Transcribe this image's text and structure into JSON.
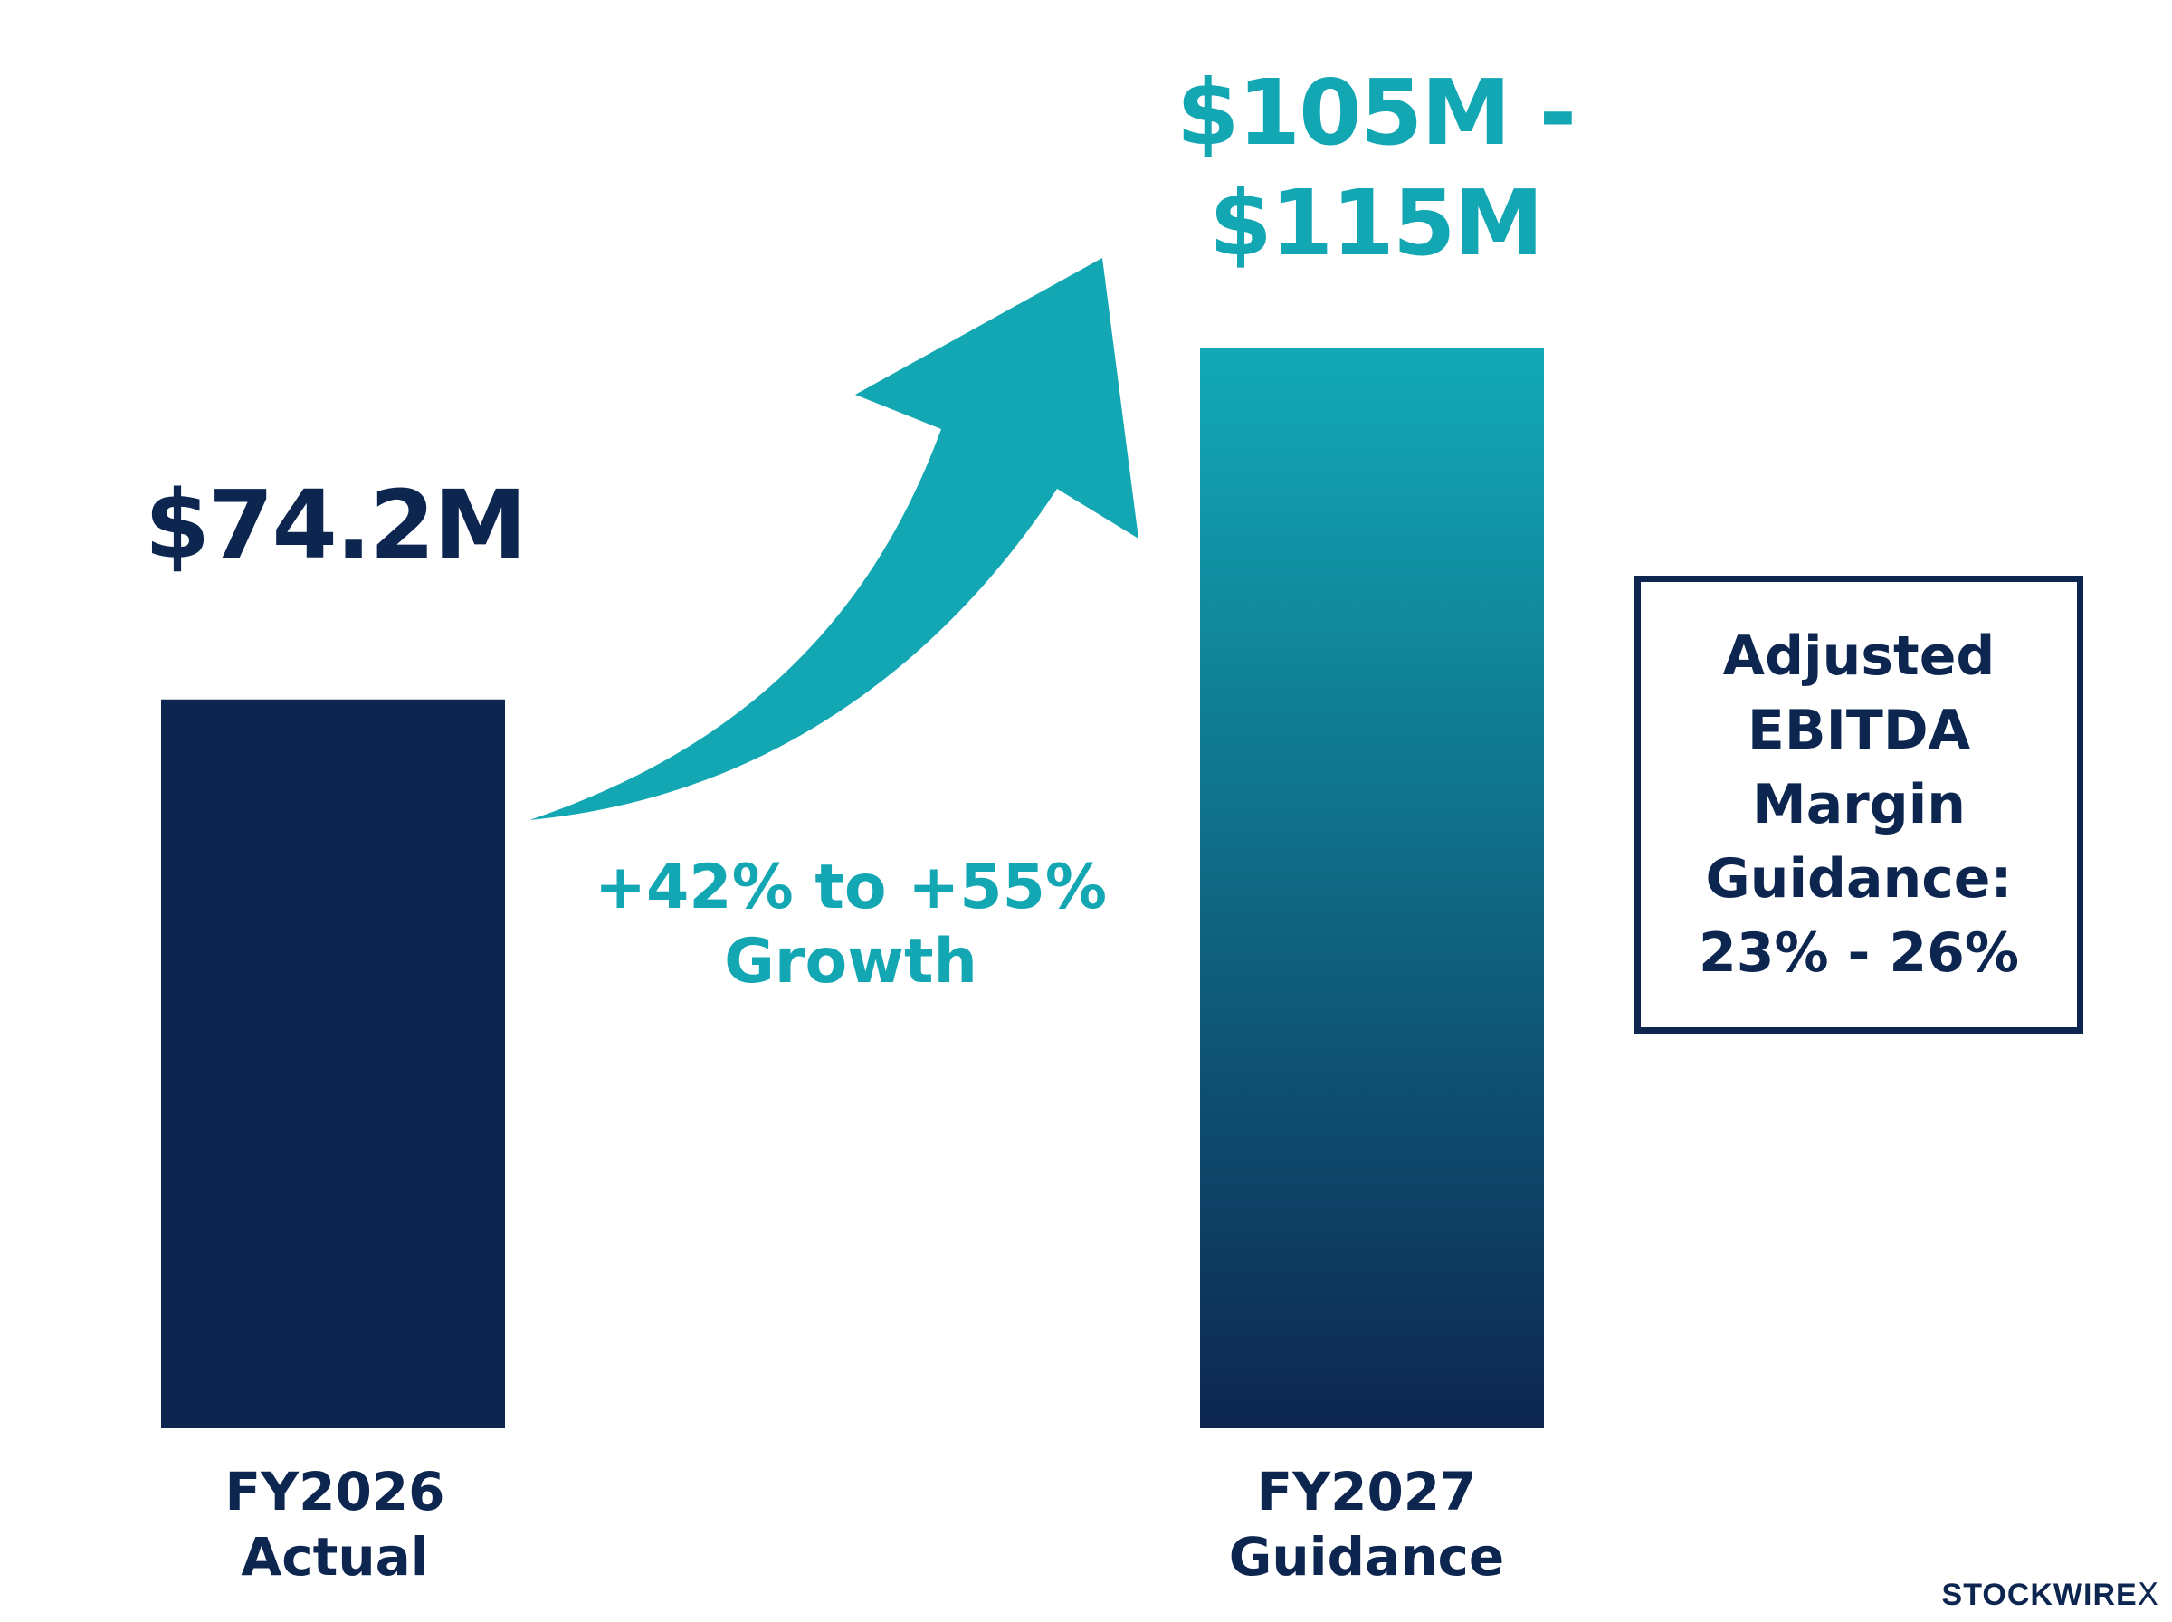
{
  "chart_data": {
    "type": "bar",
    "title": "",
    "xlabel": "",
    "ylabel": "",
    "ylim": [
      0,
      115
    ],
    "grid": false,
    "legend": "none",
    "categories": [
      "FY2026 Actual",
      "FY2027 Guidance"
    ],
    "category_lines": [
      [
        "FY2026",
        "Actual"
      ],
      [
        "FY2027",
        "Guidance"
      ]
    ],
    "values": [
      74.2,
      110
    ],
    "value_labels": [
      "$74.2M",
      "$105M - $115M"
    ],
    "value_label_lines": [
      [
        "$74.2M"
      ],
      [
        "$105M -",
        "$115M"
      ]
    ],
    "ranges": [
      null,
      [
        105,
        115
      ]
    ],
    "annotation": {
      "text_lines": [
        "+42% to +55%",
        "Growth"
      ],
      "kind": "curved-arrow"
    },
    "callout": {
      "lines": [
        "Adjusted",
        "EBITDA",
        "Margin",
        "Guidance:"
      ],
      "value": "23% - 26%"
    },
    "colors": {
      "actual_bar": "#0d2650",
      "guidance_top": "#12aab7",
      "guidance_bottom": "#0d2650",
      "accent": "#13a6b3",
      "text": "#0d2650"
    }
  },
  "watermark": {
    "brand": "STOCKWIRE",
    "mark": "X"
  }
}
